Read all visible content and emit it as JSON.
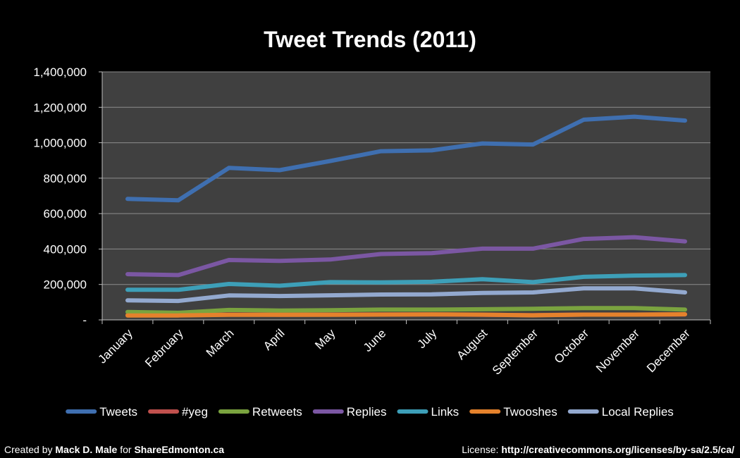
{
  "chart_data": {
    "type": "line",
    "title": "Tweet Trends (2011)",
    "xlabel": "",
    "ylabel": "",
    "ylim": [
      0,
      1400000
    ],
    "yticks": [
      0,
      200000,
      400000,
      600000,
      800000,
      1000000,
      1200000,
      1400000
    ],
    "ytick_labels": [
      "-",
      "200,000",
      "400,000",
      "600,000",
      "800,000",
      "1,000,000",
      "1,200,000",
      "1,400,000"
    ],
    "categories": [
      "January",
      "February",
      "March",
      "April",
      "May",
      "June",
      "July",
      "August",
      "September",
      "October",
      "November",
      "December"
    ],
    "grid": true,
    "legend_position": "bottom",
    "plot_background": "#404040",
    "series": [
      {
        "name": "Tweets",
        "color": "#3f6fb0",
        "values": [
          683000,
          675000,
          858000,
          845000,
          897000,
          952000,
          957000,
          996000,
          990000,
          1130000,
          1147000,
          1125000
        ]
      },
      {
        "name": "#yeg",
        "color": "#c0504d",
        "values": [
          28000,
          27000,
          30000,
          29000,
          30000,
          31000,
          31000,
          29000,
          27000,
          30000,
          30000,
          31000
        ]
      },
      {
        "name": "Retweets",
        "color": "#7aa33f",
        "values": [
          45000,
          40000,
          56000,
          53000,
          55000,
          58000,
          58000,
          60000,
          63000,
          67000,
          67000,
          58000
        ]
      },
      {
        "name": "Replies",
        "color": "#7b57a3",
        "values": [
          258000,
          253000,
          338000,
          333000,
          341000,
          372000,
          377000,
          402000,
          402000,
          457000,
          467000,
          443000
        ]
      },
      {
        "name": "Links",
        "color": "#3d9fb8",
        "values": [
          170000,
          170000,
          203000,
          193000,
          213000,
          212000,
          215000,
          230000,
          213000,
          243000,
          250000,
          253000
        ]
      },
      {
        "name": "Twooshes",
        "color": "#e5822c",
        "values": [
          25000,
          25000,
          29000,
          29000,
          29000,
          30000,
          31000,
          30000,
          26000,
          30000,
          30000,
          32000
        ]
      },
      {
        "name": "Local Replies",
        "color": "#93a9cf",
        "values": [
          110000,
          107000,
          138000,
          135000,
          139000,
          143000,
          144000,
          152000,
          155000,
          178000,
          178000,
          155000
        ]
      }
    ]
  },
  "footer": {
    "left_prefix": "Created by ",
    "left_author": "Mack D. Male",
    "left_mid": " for ",
    "left_site": "ShareEdmonton.ca",
    "right_prefix": "License: ",
    "right_url": "http://creativecommons.org/licenses/by-sa/2.5/ca/"
  }
}
